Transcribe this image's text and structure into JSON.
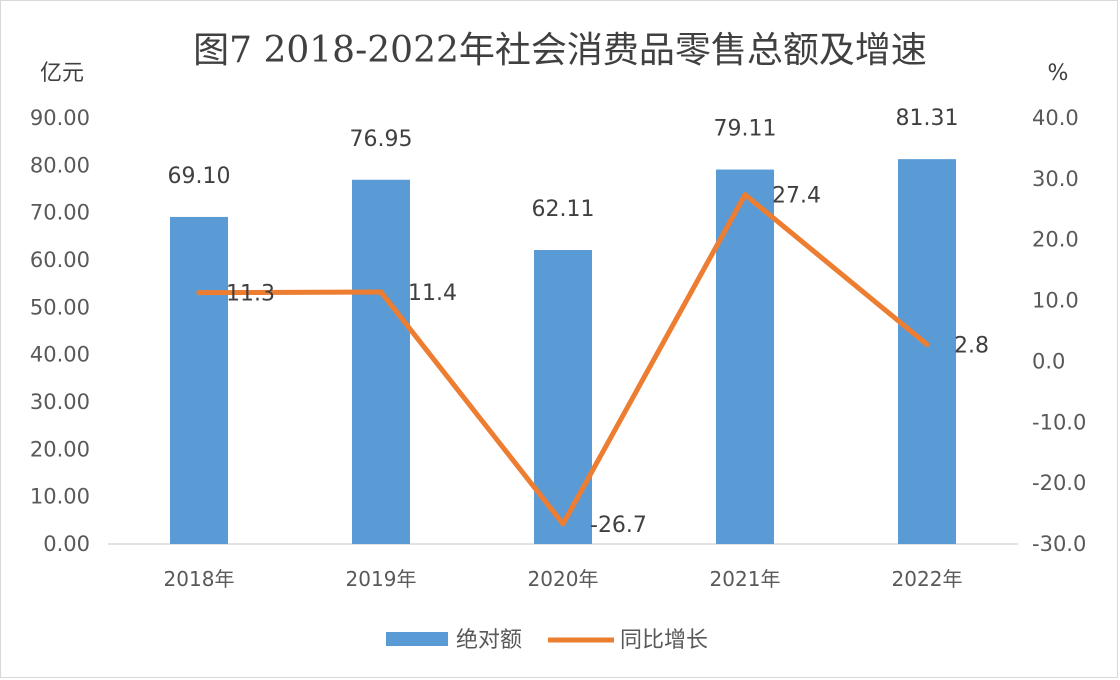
{
  "chart_data": {
    "type": "bar+line",
    "title": "图7  2018-2022年社会消费品零售总额及增速",
    "y_left_unit": "亿元",
    "y_right_unit": "%",
    "categories": [
      "2018年",
      "2019年",
      "2020年",
      "2021年",
      "2022年"
    ],
    "series": [
      {
        "name": "绝对额",
        "type": "bar",
        "axis": "left",
        "color": "#5b9bd5",
        "values": [
          69.1,
          76.95,
          62.11,
          79.11,
          81.31
        ],
        "labels": [
          "69.10",
          "76.95",
          "62.11",
          "79.11",
          "81.31"
        ]
      },
      {
        "name": "同比增长",
        "type": "line",
        "axis": "right",
        "color": "#ed7d31",
        "values": [
          11.3,
          11.4,
          -26.7,
          27.4,
          2.8
        ],
        "labels": [
          "11.3",
          "11.4",
          "-26.7",
          "27.4",
          "2.8"
        ]
      }
    ],
    "y_left": {
      "min": 0,
      "max": 90,
      "step": 10,
      "tick_labels": [
        "0.00",
        "10.00",
        "20.00",
        "30.00",
        "40.00",
        "50.00",
        "60.00",
        "70.00",
        "80.00",
        "90.00"
      ]
    },
    "y_right": {
      "min": -30,
      "max": 40,
      "step": 10,
      "tick_labels": [
        "-30.0",
        "-20.0",
        "-10.0",
        "0.0",
        "10.0",
        "20.0",
        "30.0",
        "40.0"
      ]
    },
    "grid": false,
    "legend_position": "bottom"
  }
}
